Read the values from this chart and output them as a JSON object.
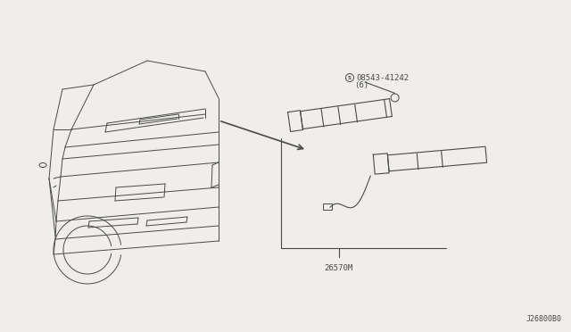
{
  "bg_color": "#f0eeea",
  "line_color": "#4a4a4a",
  "part_label_1": "08543-41242",
  "part_label_1b": "(6)",
  "part_label_2": "26570M",
  "diagram_code": "J26800B0",
  "font_size_label": 6.5,
  "font_size_code": 6,
  "lw": 0.8,
  "lw_car": 0.7
}
